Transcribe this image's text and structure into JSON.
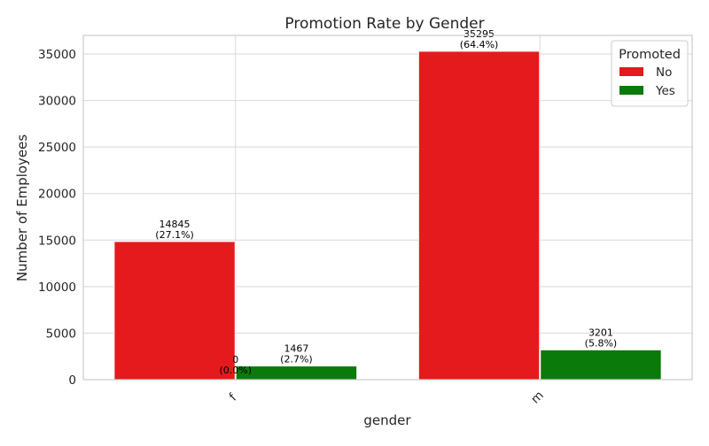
{
  "chart_data": {
    "type": "bar",
    "title": "Promotion Rate by Gender",
    "xlabel": "gender",
    "ylabel": "Number of Employees",
    "categories": [
      "f",
      "m"
    ],
    "ylim": [
      0,
      37000
    ],
    "yticks": [
      0,
      5000,
      10000,
      15000,
      20000,
      25000,
      30000,
      35000
    ],
    "grid": true,
    "legend": {
      "title": "Promoted",
      "placement": "top-right"
    },
    "series": [
      {
        "name": "No",
        "color": "#e41a1c",
        "values": [
          14845,
          35295
        ],
        "labels": [
          "14845\n(27.1%)",
          "35295\n(64.4%)"
        ]
      },
      {
        "name": "Yes",
        "color": "#0a7a0a",
        "values": [
          1467,
          3201
        ],
        "labels": [
          "1467\n(2.7%)",
          "3201\n(5.8%)"
        ]
      }
    ],
    "annotations": [
      {
        "category": "f",
        "text": "0\n(0.0%)"
      }
    ]
  }
}
